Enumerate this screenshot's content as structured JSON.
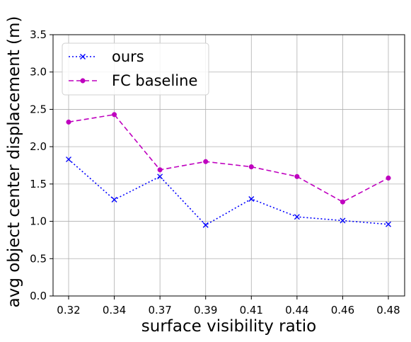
{
  "chart_data": {
    "type": "line",
    "categories": [
      "0.32",
      "0.34",
      "0.37",
      "0.39",
      "0.41",
      "0.44",
      "0.46",
      "0.48"
    ],
    "series": [
      {
        "name": "ours",
        "values": [
          1.83,
          1.29,
          1.6,
          0.95,
          1.3,
          1.06,
          1.01,
          0.96
        ],
        "color": "#0000ff",
        "line_style": "dotted",
        "marker": "x"
      },
      {
        "name": "FC baseline",
        "values": [
          2.33,
          2.43,
          1.69,
          1.8,
          1.73,
          1.6,
          1.26,
          1.58
        ],
        "color": "#bf00bf",
        "line_style": "dashed",
        "marker": "circle"
      }
    ],
    "xlabel": "surface visibility ratio",
    "ylabel": "avg object center displacement (m)",
    "ylim": [
      0,
      3.5
    ],
    "yticks": [
      "0.0",
      "0.5",
      "1.0",
      "1.5",
      "2.0",
      "2.5",
      "3.0",
      "3.5"
    ],
    "grid": true,
    "legend_position": "top-left"
  }
}
